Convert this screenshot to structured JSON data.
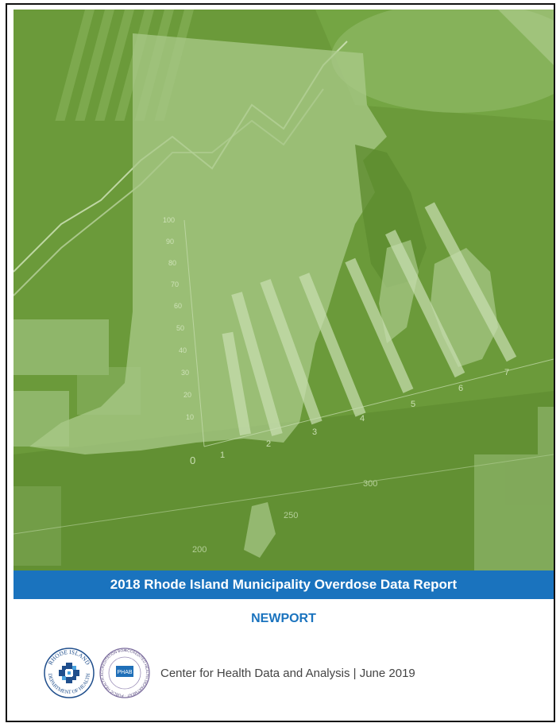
{
  "report": {
    "title": "2018 Rhode Island Municipality Overdose Data Report",
    "municipality": "NEWPORT",
    "footer_text": "Center for Health Data and Analysis | June 2019"
  },
  "cover_graphic": {
    "chart_y_ticks": [
      "100",
      "90",
      "80",
      "70",
      "60",
      "50",
      "40",
      "30",
      "20",
      "10",
      "0"
    ],
    "chart_x_ticks": [
      "1",
      "2",
      "3",
      "4",
      "5",
      "6",
      "7"
    ],
    "extra_ticks": [
      "300",
      "250",
      "200"
    ]
  },
  "logos": {
    "ridoh_top": "RHODE ISLAND",
    "ridoh_bottom": "DEPARTMENT OF HEALTH",
    "phab_label": "PHAB",
    "phab_ring": "ACCREDITED HEALTH DEPARTMENT · PUBLIC HEALTH ACCREDITATION BOARD"
  },
  "colors": {
    "cover_green": "#6b9a3a",
    "title_blue": "#1a73be",
    "ridoh_blue": "#1f4e8c"
  }
}
